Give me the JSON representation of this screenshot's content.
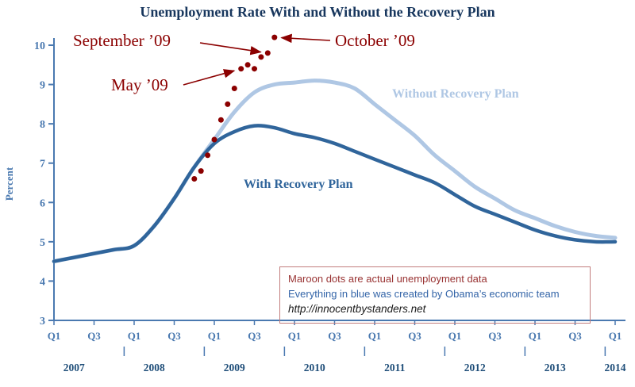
{
  "title": "Unemployment Rate With and Without the Recovery Plan",
  "colors": {
    "title_navy": "#17365D",
    "axis_blue": "#4A79B0",
    "year_navy": "#1F4E79",
    "with_plan_blue": "#30659B",
    "without_plan_light_blue": "#AFC7E4",
    "maroon": "#8B0000",
    "info_border": "#C27D7D",
    "info_maroon": "#993333",
    "info_blue": "#3465A8"
  },
  "info_box": {
    "line1": "Maroon dots are actual unemployment data",
    "line2": "Everything in blue was created by Obama’s economic team",
    "line3": "http://innocentbystanders.net"
  },
  "chart_data": {
    "type": "line",
    "title": "Unemployment Rate With and Without the Recovery Plan",
    "xlabel": "",
    "ylabel": "Percent",
    "ylim": [
      3,
      10
    ],
    "y_ticks": [
      3,
      4,
      5,
      6,
      7,
      8,
      9,
      10
    ],
    "grid": false,
    "x_unit": "quarter",
    "x_start": "2007-Q1",
    "x_end": "2014-Q1",
    "years": [
      2007,
      2008,
      2009,
      2010,
      2011,
      2012,
      2013,
      2014
    ],
    "quarter_labels": [
      "Q1",
      "Q3"
    ],
    "series": [
      {
        "name": "Without Recovery Plan",
        "color": "#AFC7E4",
        "values": [
          4.5,
          4.6,
          4.7,
          4.8,
          4.9,
          5.4,
          6.1,
          6.9,
          7.6,
          8.3,
          8.8,
          9.0,
          9.05,
          9.1,
          9.05,
          8.9,
          8.5,
          8.1,
          7.7,
          7.2,
          6.8,
          6.4,
          6.1,
          5.8,
          5.6,
          5.4,
          5.25,
          5.15,
          5.1
        ]
      },
      {
        "name": "With Recovery Plan",
        "color": "#30659B",
        "values": [
          4.5,
          4.6,
          4.7,
          4.8,
          4.9,
          5.4,
          6.1,
          6.9,
          7.5,
          7.8,
          7.95,
          7.9,
          7.75,
          7.65,
          7.5,
          7.3,
          7.1,
          6.9,
          6.7,
          6.5,
          6.2,
          5.9,
          5.7,
          5.5,
          5.3,
          5.15,
          5.05,
          5.0,
          5.0
        ]
      }
    ],
    "actual_dots": {
      "color": "#8B0000",
      "points": [
        [
          "2008-10",
          6.6
        ],
        [
          "2008-11",
          6.8
        ],
        [
          "2008-12",
          7.2
        ],
        [
          "2009-01",
          7.6
        ],
        [
          "2009-02",
          8.1
        ],
        [
          "2009-03",
          8.5
        ],
        [
          "2009-04",
          8.9
        ],
        [
          "2009-05",
          9.4
        ],
        [
          "2009-06",
          9.5
        ],
        [
          "2009-07",
          9.4
        ],
        [
          "2009-08",
          9.7
        ],
        [
          "2009-09",
          9.8
        ],
        [
          "2009-10",
          10.2
        ]
      ]
    },
    "annotations": [
      {
        "label": "September ’09",
        "target_month": "2009-09",
        "target_value": 9.8
      },
      {
        "label": "May ’09",
        "target_month": "2009-05",
        "target_value": 9.4
      },
      {
        "label": "October ’09",
        "target_month": "2009-10",
        "target_value": 10.2
      }
    ]
  }
}
